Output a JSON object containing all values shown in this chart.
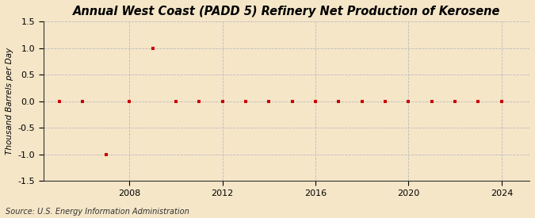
{
  "title": "Annual West Coast (PADD 5) Refinery Net Production of Kerosene",
  "ylabel": "Thousand Barrels per Day",
  "source": "Source: U.S. Energy Information Administration",
  "bg_color": "#f5e6c8",
  "plot_bg_color": "#f5e6c8",
  "marker_color": "#cc0000",
  "grid_color": "#bbbbbb",
  "years": [
    2005,
    2006,
    2007,
    2008,
    2009,
    2010,
    2011,
    2012,
    2013,
    2014,
    2015,
    2016,
    2017,
    2018,
    2019,
    2020,
    2021,
    2022,
    2023,
    2024
  ],
  "values": [
    0,
    0,
    -1,
    0,
    1,
    0,
    0,
    0,
    0,
    0,
    0,
    0,
    0,
    0,
    0,
    0,
    0,
    0,
    0,
    0
  ],
  "ylim": [
    -1.5,
    1.5
  ],
  "yticks": [
    -1.5,
    -1.0,
    -0.5,
    0.0,
    0.5,
    1.0,
    1.5
  ],
  "xticks": [
    2008,
    2012,
    2016,
    2020,
    2024
  ],
  "xlim": [
    2004.3,
    2025.2
  ],
  "title_fontsize": 10.5,
  "label_fontsize": 7.5,
  "tick_fontsize": 8,
  "source_fontsize": 7
}
